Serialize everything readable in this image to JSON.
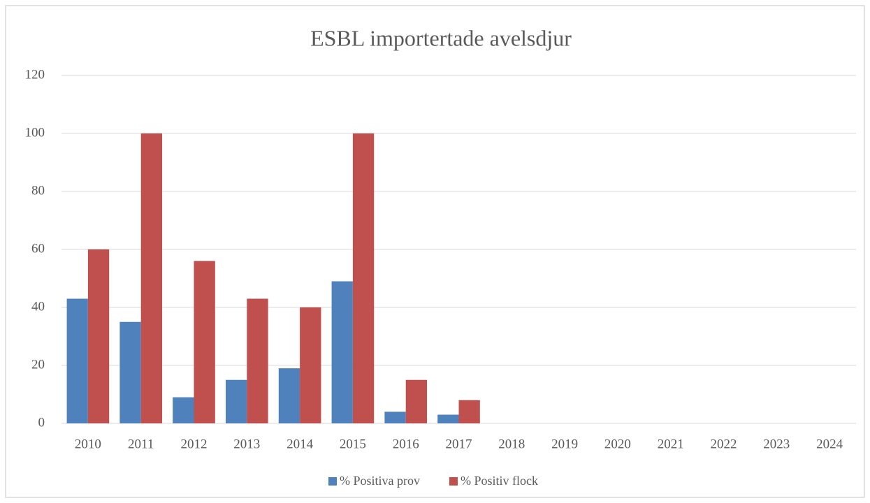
{
  "chart_data": {
    "type": "bar",
    "title": "ESBL importertade avelsdjur",
    "categories": [
      "2010",
      "2011",
      "2012",
      "2013",
      "2014",
      "2015",
      "2016",
      "2017",
      "2018",
      "2019",
      "2020",
      "2021",
      "2022",
      "2023",
      "2024"
    ],
    "series": [
      {
        "name": "% Positiva prov",
        "color": "#4f81bd",
        "values": [
          43,
          35,
          9,
          15,
          19,
          49,
          4,
          3,
          null,
          null,
          null,
          null,
          null,
          null,
          null
        ]
      },
      {
        "name": "% Positiv flock",
        "color": "#c0504d",
        "values": [
          60,
          100,
          56,
          43,
          40,
          100,
          15,
          8,
          null,
          null,
          null,
          null,
          null,
          null,
          null
        ]
      }
    ],
    "ylim": [
      0,
      120
    ],
    "yticks": [
      0,
      20,
      40,
      60,
      80,
      100,
      120
    ],
    "grid": true,
    "legend": "bottom"
  }
}
